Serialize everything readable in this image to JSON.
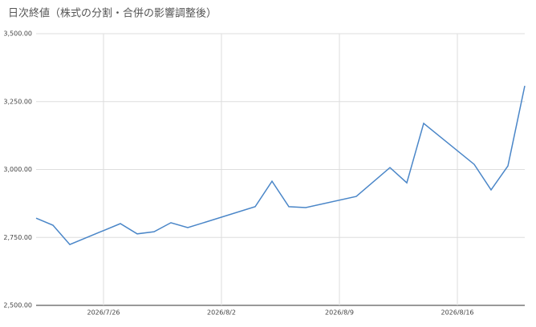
{
  "chart_data": {
    "type": "line",
    "title": "日次終値（株式の分割・合併の影響調整後）",
    "x": [
      "2026/7/22",
      "2026/7/23",
      "2026/7/24",
      "2026/7/27",
      "2026/7/28",
      "2026/7/29",
      "2026/7/30",
      "2026/7/31",
      "2026/8/4",
      "2026/8/5",
      "2026/8/6",
      "2026/8/7",
      "2026/8/10",
      "2026/8/12",
      "2026/8/13",
      "2026/8/14",
      "2026/8/17",
      "2026/8/18",
      "2026/8/19",
      "2026/8/20"
    ],
    "values": [
      2821,
      2795,
      2724,
      2801,
      2763,
      2771,
      2804,
      2786,
      2863,
      2957,
      2863,
      2860,
      2901,
      3007,
      2951,
      3170,
      3019,
      2925,
      3013,
      3308
    ],
    "color": "#4a86c8",
    "xlim": [
      "2026/7/22",
      "2026/8/20"
    ],
    "xticks": [
      "2026/7/26",
      "2026/8/2",
      "2026/8/9",
      "2026/8/16"
    ],
    "ylim": [
      2500,
      3500
    ],
    "yticks": [
      {
        "value": 2500,
        "label": "2,500.00"
      },
      {
        "value": 2750,
        "label": "2,750.00"
      },
      {
        "value": 3000,
        "label": "3,000.00"
      },
      {
        "value": 3250,
        "label": "3,250.00"
      },
      {
        "value": 3500,
        "label": "3,500.00"
      }
    ],
    "grid": true
  }
}
